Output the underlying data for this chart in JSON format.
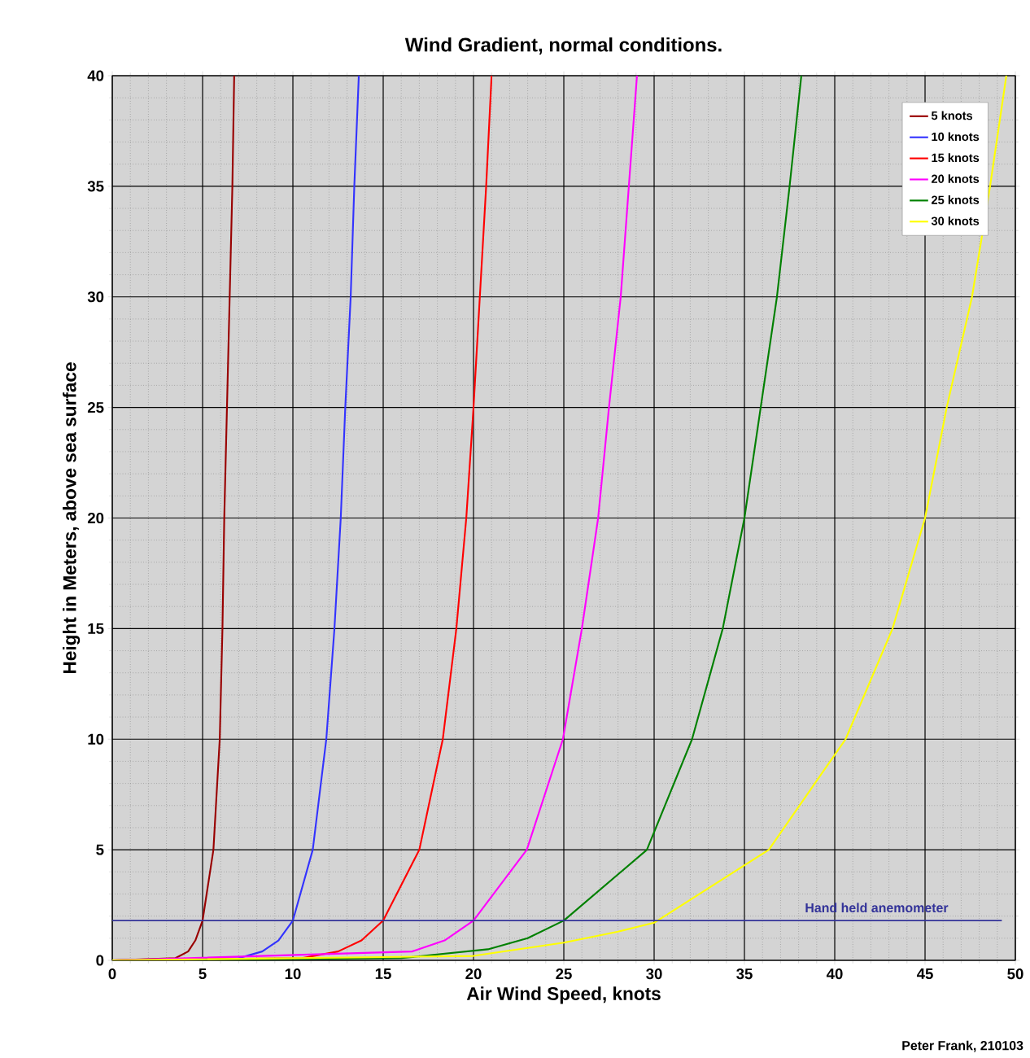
{
  "chart_data": {
    "type": "line",
    "title": "Wind Gradient, normal conditions.",
    "xlabel": "Air Wind Speed, knots",
    "ylabel": "Height in Meters, above sea surface",
    "xlim": [
      0,
      50
    ],
    "ylim": [
      0,
      40
    ],
    "xticks": [
      0,
      5,
      10,
      15,
      20,
      25,
      30,
      35,
      40,
      45,
      50
    ],
    "yticks": [
      0,
      5,
      10,
      15,
      20,
      25,
      30,
      35,
      40
    ],
    "grid": true,
    "legend": "top right",
    "line_style": "solid",
    "series": [
      {
        "name": "5 knots",
        "color": "#990000",
        "x": [
          0,
          3.5,
          4.2,
          4.6,
          5,
          5.6,
          5.95,
          6.1,
          6.2,
          6.35,
          6.5,
          6.65,
          6.75
        ],
        "values": [
          0,
          0.1,
          0.4,
          0.9,
          1.8,
          5,
          10,
          15,
          20,
          25,
          30,
          35,
          40
        ]
      },
      {
        "name": "10 knots",
        "color": "#3333ff",
        "x": [
          0,
          7,
          8.3,
          9.2,
          10,
          11.1,
          11.85,
          12.3,
          12.65,
          12.9,
          13.2,
          13.4,
          13.65
        ],
        "values": [
          0,
          0.1,
          0.4,
          0.9,
          1.8,
          5,
          10,
          15,
          20,
          25,
          30,
          35,
          40
        ]
      },
      {
        "name": "15 knots",
        "color": "#ff0000",
        "x": [
          0,
          10.5,
          12.5,
          13.8,
          15,
          17.0,
          18.3,
          19.05,
          19.6,
          20.0,
          20.35,
          20.7,
          21.0
        ],
        "values": [
          0,
          0.1,
          0.4,
          0.9,
          1.8,
          5,
          10,
          15,
          20,
          25,
          30,
          35,
          40
        ]
      },
      {
        "name": "20 knots",
        "color": "#ff00ff",
        "x": [
          0,
          14,
          16.6,
          18.4,
          20,
          22.95,
          24.95,
          26.0,
          26.9,
          27.5,
          28.15,
          28.6,
          29.05
        ],
        "values": [
          0,
          null,
          0.4,
          0.9,
          1.8,
          5,
          10,
          15,
          20,
          25,
          30,
          35,
          40
        ]
      },
      {
        "name": "25 knots",
        "color": "#008000",
        "x": [
          0,
          16,
          20.8,
          23,
          25,
          29.6,
          32.1,
          33.8,
          35.0,
          35.9,
          36.8,
          37.5,
          38.15
        ],
        "values": [
          0,
          0.1,
          0.5,
          1.0,
          1.8,
          5,
          10,
          15,
          20,
          25,
          30,
          35,
          40
        ]
      },
      {
        "name": "30 knots",
        "color": "#ffff00",
        "x": [
          0,
          20,
          25,
          28,
          30,
          36.35,
          40.6,
          43.2,
          45.0,
          46.2,
          47.6,
          48.6,
          49.5
        ],
        "values": [
          0,
          0.2,
          0.8,
          1.3,
          1.7,
          5,
          10,
          15,
          20,
          25,
          30,
          35,
          40
        ]
      }
    ],
    "ref_lines": [
      {
        "axis": "y",
        "value": 1.8,
        "label": "Hand held anemometer",
        "color": "#333399"
      }
    ],
    "annotations": [
      "Peter Frank, 210103"
    ]
  }
}
